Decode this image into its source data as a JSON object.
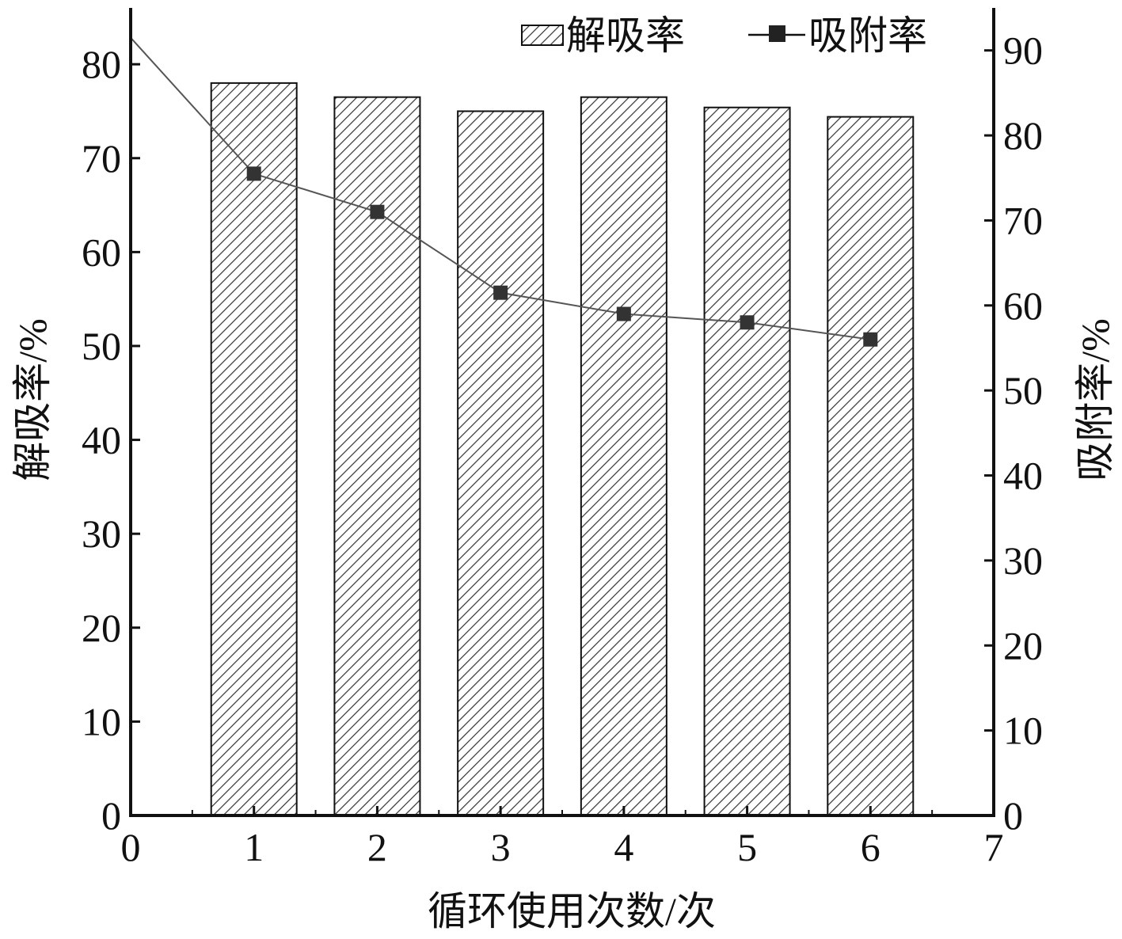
{
  "chart_data": {
    "type": "bar",
    "xlabel": "循环使用次数/次",
    "ylabel_left": "解吸率/%",
    "ylabel_right": "吸附率/%",
    "x_ticks": [
      "0",
      "1",
      "2",
      "3",
      "4",
      "5",
      "6",
      "7"
    ],
    "xlim": [
      0,
      7
    ],
    "ylim_left": [
      0,
      86
    ],
    "ylim_right": [
      0,
      95
    ],
    "y_ticks_left": [
      "0",
      "10",
      "20",
      "30",
      "40",
      "50",
      "60",
      "70",
      "80"
    ],
    "y_ticks_right": [
      "0",
      "10",
      "20",
      "30",
      "40",
      "50",
      "60",
      "70",
      "80",
      "90"
    ],
    "legend_position": "top-right",
    "series": [
      {
        "name": "解吸率",
        "type": "bar",
        "axis": "left",
        "pattern": "diagonal-hatch",
        "x": [
          1,
          2,
          3,
          4,
          5,
          6
        ],
        "values": [
          78.0,
          76.5,
          75.0,
          76.5,
          75.4,
          74.4
        ]
      },
      {
        "name": "吸附率",
        "type": "line",
        "axis": "right",
        "marker": "square",
        "x": [
          0,
          1,
          2,
          3,
          4,
          5,
          6
        ],
        "values": [
          91.5,
          75.5,
          71.0,
          61.5,
          59.0,
          58.0,
          56.0
        ],
        "marker_x": [
          1,
          2,
          3,
          4,
          5,
          6
        ]
      }
    ],
    "colors": {
      "line": "#555555",
      "marker": "#333333",
      "axis": "#111111",
      "hatch": "#333333"
    }
  }
}
